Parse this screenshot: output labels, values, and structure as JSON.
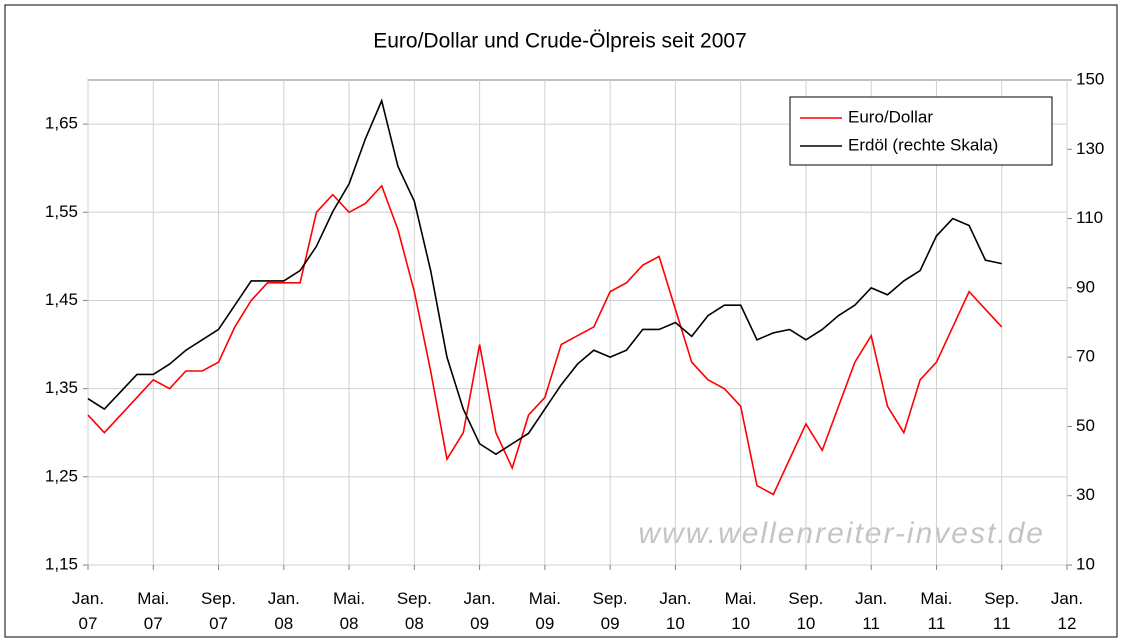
{
  "chart_data": {
    "type": "line",
    "title": "Euro/Dollar und Crude-Ölpreis seit 2007",
    "watermark": "www.wellenreiter-invest.de",
    "x": [
      0,
      1,
      2,
      3,
      4,
      5,
      6,
      7,
      8,
      9,
      10,
      11,
      12,
      13,
      14,
      15,
      16,
      17,
      18,
      19,
      20,
      21,
      22,
      23,
      24,
      25,
      26,
      27,
      28,
      29,
      30,
      31,
      32,
      33,
      34,
      35,
      36,
      37,
      38,
      39,
      40,
      41,
      42,
      43,
      44,
      45,
      46,
      47,
      48,
      49,
      50,
      51,
      52,
      53,
      54,
      55,
      56
    ],
    "xlim": [
      0,
      60
    ],
    "xticks": [
      {
        "value": 0,
        "label": "Jan. 07"
      },
      {
        "value": 4,
        "label": "Mai. 07"
      },
      {
        "value": 8,
        "label": "Sep. 07"
      },
      {
        "value": 12,
        "label": "Jan. 08"
      },
      {
        "value": 16,
        "label": "Mai. 08"
      },
      {
        "value": 20,
        "label": "Sep. 08"
      },
      {
        "value": 24,
        "label": "Jan. 09"
      },
      {
        "value": 28,
        "label": "Mai. 09"
      },
      {
        "value": 32,
        "label": "Sep. 09"
      },
      {
        "value": 36,
        "label": "Jan. 10"
      },
      {
        "value": 40,
        "label": "Mai. 10"
      },
      {
        "value": 44,
        "label": "Sep. 10"
      },
      {
        "value": 48,
        "label": "Jan. 11"
      },
      {
        "value": 52,
        "label": "Mai. 11"
      },
      {
        "value": 56,
        "label": "Sep. 11"
      },
      {
        "value": 60,
        "label": "Jan. 12"
      }
    ],
    "ylim": [
      1.15,
      1.7
    ],
    "yticks": [
      {
        "value": 1.15,
        "label": "1,15"
      },
      {
        "value": 1.25,
        "label": "1,25"
      },
      {
        "value": 1.35,
        "label": "1,35"
      },
      {
        "value": 1.45,
        "label": "1,45"
      },
      {
        "value": 1.55,
        "label": "1,55"
      },
      {
        "value": 1.65,
        "label": "1,65"
      }
    ],
    "y2lim": [
      10,
      150
    ],
    "y2ticks": [
      10,
      30,
      50,
      70,
      90,
      110,
      130,
      150
    ],
    "grid": true,
    "legend": "upper right",
    "series": [
      {
        "name": "Euro/Dollar",
        "color": "#ff0000",
        "values": [
          1.32,
          1.3,
          1.32,
          1.34,
          1.36,
          1.35,
          1.37,
          1.37,
          1.38,
          1.42,
          1.45,
          1.47,
          1.47,
          1.47,
          1.55,
          1.57,
          1.55,
          1.56,
          1.58,
          1.53,
          1.46,
          1.37,
          1.27,
          1.3,
          1.4,
          1.3,
          1.26,
          1.32,
          1.34,
          1.4,
          1.41,
          1.42,
          1.46,
          1.47,
          1.49,
          1.5,
          1.44,
          1.38,
          1.36,
          1.35,
          1.33,
          1.24,
          1.23,
          1.27,
          1.31,
          1.28,
          1.33,
          1.38,
          1.41,
          1.33,
          1.3,
          1.36,
          1.38,
          1.42,
          1.46,
          1.44,
          1.42
        ]
      },
      {
        "name": "Erdöl (rechte Skala)",
        "color": "#000000",
        "axis": "y2",
        "values": [
          58,
          55,
          60,
          65,
          65,
          68,
          72,
          75,
          78,
          85,
          92,
          92,
          92,
          95,
          102,
          112,
          120,
          133,
          144,
          125,
          115,
          95,
          70,
          55,
          45,
          42,
          45,
          48,
          55,
          62,
          68,
          72,
          70,
          72,
          78,
          78,
          80,
          76,
          82,
          85,
          85,
          75,
          77,
          78,
          75,
          78,
          82,
          85,
          90,
          88,
          92,
          95,
          105,
          110,
          108,
          98,
          97
        ]
      }
    ]
  }
}
